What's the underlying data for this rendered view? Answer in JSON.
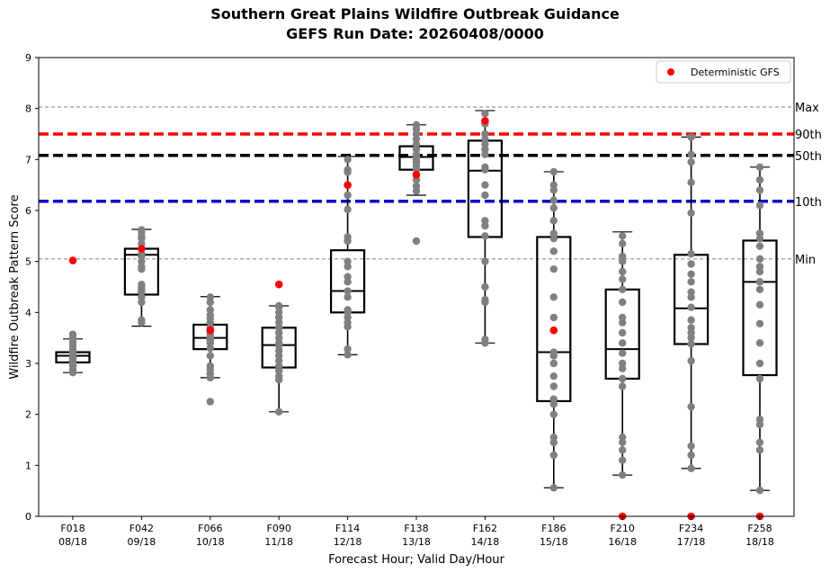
{
  "chart_data": {
    "type": "box",
    "title_line1": "Southern Great Plains Wildfire Outbreak Guidance",
    "title_line2": "GEFS Run Date: 20260408/0000",
    "xlabel": "Forecast Hour; Valid Day/Hour",
    "ylabel": "Wildfire Outbreak Pattern Score",
    "ylim": [
      0,
      9
    ],
    "yticks": [
      "0",
      "1",
      "2",
      "3",
      "4",
      "5",
      "6",
      "7",
      "8",
      "9"
    ],
    "legend": {
      "label": "Deterministic GFS",
      "color": "#ff0000",
      "position": "top-right"
    },
    "reference_lines": [
      {
        "label": "Max",
        "value": 8.03,
        "color": "#808080",
        "style": "thin-dashed"
      },
      {
        "label": "90th",
        "value": 7.5,
        "color": "#ff0000",
        "style": "thick-dashed"
      },
      {
        "label": "50th",
        "value": 7.08,
        "color": "#000000",
        "style": "thick-dashed"
      },
      {
        "label": "10th",
        "value": 6.18,
        "color": "#0000cc",
        "style": "thick-dashed"
      },
      {
        "label": "Min",
        "value": 5.05,
        "color": "#808080",
        "style": "thin-dashed"
      }
    ],
    "groups": [
      {
        "label": "F018",
        "sublabel": "08/18",
        "whisker_low": 2.82,
        "q1": 3.02,
        "median": 3.15,
        "q3": 3.22,
        "whisker_high": 3.48,
        "deterministic": 5.02,
        "members": [
          2.82,
          2.88,
          2.95,
          3.0,
          3.02,
          3.05,
          3.08,
          3.1,
          3.12,
          3.15,
          3.17,
          3.2,
          3.22,
          3.28,
          3.35,
          3.42,
          3.5,
          3.57
        ]
      },
      {
        "label": "F042",
        "sublabel": "09/18",
        "whisker_low": 3.73,
        "q1": 4.35,
        "median": 5.13,
        "q3": 5.25,
        "whisker_high": 5.63,
        "deterministic": 5.25,
        "members": [
          3.8,
          3.85,
          4.2,
          4.3,
          4.4,
          4.45,
          4.5,
          4.55,
          4.85,
          4.9,
          5.0,
          5.1,
          5.15,
          5.25,
          5.35,
          5.45,
          5.5,
          5.58,
          5.62
        ]
      },
      {
        "label": "F066",
        "sublabel": "10/18",
        "whisker_low": 2.72,
        "q1": 3.28,
        "median": 3.5,
        "q3": 3.76,
        "whisker_high": 4.31,
        "deterministic": 3.65,
        "members": [
          2.25,
          2.72,
          2.8,
          2.88,
          2.95,
          3.15,
          3.3,
          3.4,
          3.45,
          3.5,
          3.55,
          3.62,
          3.7,
          3.8,
          3.88,
          3.95,
          4.05,
          4.2,
          4.3
        ]
      },
      {
        "label": "F090",
        "sublabel": "11/18",
        "whisker_low": 2.05,
        "q1": 2.92,
        "median": 3.36,
        "q3": 3.7,
        "whisker_high": 4.13,
        "deterministic": 4.55,
        "members": [
          2.05,
          2.68,
          2.75,
          2.85,
          2.95,
          3.05,
          3.15,
          3.25,
          3.35,
          3.4,
          3.5,
          3.6,
          3.7,
          3.8,
          3.9,
          4.0,
          4.1,
          4.13
        ]
      },
      {
        "label": "F114",
        "sublabel": "12/18",
        "whisker_low": 3.17,
        "q1": 4.0,
        "median": 4.42,
        "q3": 5.22,
        "whisker_high": 7.06,
        "deterministic": 6.5,
        "members": [
          3.17,
          3.28,
          3.72,
          3.8,
          3.9,
          4.0,
          4.05,
          4.3,
          4.42,
          4.6,
          4.7,
          4.9,
          5.0,
          5.4,
          5.48,
          6.02,
          6.3,
          6.75,
          6.8,
          7.0
        ]
      },
      {
        "label": "F138",
        "sublabel": "13/18",
        "whisker_low": 6.3,
        "q1": 6.8,
        "median": 7.05,
        "q3": 7.26,
        "whisker_high": 7.68,
        "deterministic": 6.7,
        "members": [
          5.4,
          6.38,
          6.48,
          6.6,
          6.7,
          6.8,
          6.88,
          6.95,
          7.0,
          7.05,
          7.1,
          7.2,
          7.3,
          7.4,
          7.5,
          7.6,
          7.68
        ]
      },
      {
        "label": "F162",
        "sublabel": "14/18",
        "whisker_low": 3.4,
        "q1": 5.48,
        "median": 6.78,
        "q3": 7.37,
        "whisker_high": 7.96,
        "deterministic": 7.76,
        "members": [
          3.4,
          3.47,
          4.2,
          4.25,
          4.5,
          5.0,
          5.5,
          5.7,
          5.8,
          6.3,
          6.5,
          6.8,
          6.85,
          7.1,
          7.2,
          7.3,
          7.4,
          7.5,
          7.7,
          7.9
        ]
      },
      {
        "label": "F186",
        "sublabel": "15/18",
        "whisker_low": 0.56,
        "q1": 2.26,
        "median": 3.22,
        "q3": 5.48,
        "whisker_high": 6.76,
        "deterministic": 3.65,
        "members": [
          0.56,
          1.2,
          1.45,
          1.55,
          2.0,
          2.2,
          2.3,
          2.55,
          2.75,
          3.0,
          3.15,
          3.22,
          3.9,
          4.3,
          4.85,
          5.2,
          5.45,
          5.55,
          5.8,
          6.05,
          6.2,
          6.4,
          6.5,
          6.76
        ]
      },
      {
        "label": "F210",
        "sublabel": "16/18",
        "whisker_low": 0.81,
        "q1": 2.7,
        "median": 3.28,
        "q3": 4.45,
        "whisker_high": 5.58,
        "deterministic": 0.0,
        "members": [
          0.81,
          1.1,
          1.3,
          1.45,
          1.55,
          2.55,
          2.7,
          2.9,
          3.0,
          3.2,
          3.4,
          3.6,
          3.8,
          3.9,
          4.2,
          4.45,
          4.65,
          4.8,
          5.0,
          5.1,
          5.35,
          5.5
        ]
      },
      {
        "label": "F234",
        "sublabel": "17/18",
        "whisker_low": 0.94,
        "q1": 3.38,
        "median": 4.08,
        "q3": 5.13,
        "whisker_high": 7.44,
        "deterministic": 0.0,
        "members": [
          0.94,
          1.2,
          1.38,
          2.15,
          3.05,
          3.38,
          3.5,
          3.6,
          3.7,
          3.85,
          4.1,
          4.3,
          4.4,
          4.6,
          4.75,
          4.95,
          5.15,
          5.95,
          6.55,
          6.95,
          7.1,
          7.44
        ]
      },
      {
        "label": "F258",
        "sublabel": "18/18",
        "whisker_low": 0.51,
        "q1": 2.77,
        "median": 4.6,
        "q3": 5.41,
        "whisker_high": 6.85,
        "deterministic": 0.0,
        "members": [
          0.51,
          1.3,
          1.45,
          1.8,
          1.9,
          2.7,
          3.0,
          3.4,
          3.78,
          4.15,
          4.45,
          4.6,
          4.8,
          4.9,
          5.05,
          5.3,
          5.45,
          5.55,
          6.1,
          6.4,
          6.6,
          6.85
        ]
      }
    ]
  }
}
